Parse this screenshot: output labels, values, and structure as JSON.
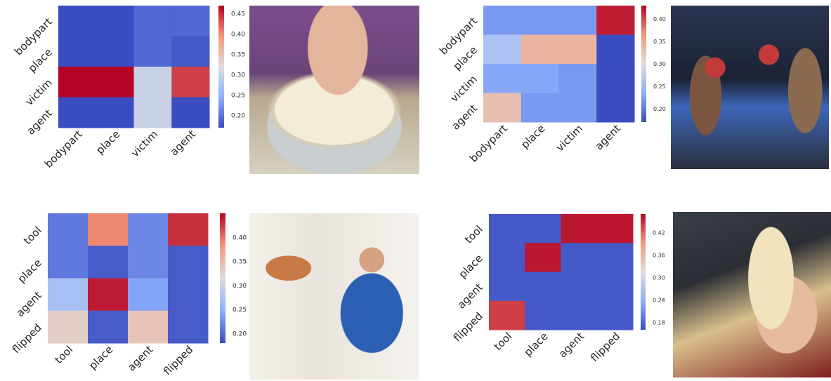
{
  "colormap": {
    "low": "#3b4cc0",
    "mid": "#dddddd",
    "high": "#b40426"
  },
  "chart_data": [
    {
      "type": "heatmap",
      "rows": [
        "bodypart",
        "place",
        "victim",
        "agent"
      ],
      "columns": [
        "bodypart",
        "place",
        "victim",
        "agent"
      ],
      "values": [
        [
          0.17,
          0.17,
          0.19,
          0.19
        ],
        [
          0.17,
          0.17,
          0.19,
          0.18
        ],
        [
          0.47,
          0.47,
          0.3,
          0.44
        ],
        [
          0.17,
          0.17,
          0.3,
          0.17
        ]
      ],
      "colorbar": {
        "ticks": [
          0.2,
          0.25,
          0.3,
          0.35,
          0.4,
          0.45
        ],
        "tick_labels": [
          "0.20",
          "0.25",
          "0.30",
          "0.35",
          "0.40",
          "0.45"
        ],
        "range": [
          0.17,
          0.47
        ]
      }
    },
    {
      "type": "heatmap",
      "rows": [
        "bodypart",
        "place",
        "victim",
        "agent"
      ],
      "columns": [
        "bodypart",
        "place",
        "victim",
        "agent"
      ],
      "values": [
        [
          0.22,
          0.22,
          0.22,
          0.42
        ],
        [
          0.26,
          0.34,
          0.34,
          0.17
        ],
        [
          0.23,
          0.23,
          0.22,
          0.17
        ],
        [
          0.33,
          0.22,
          0.22,
          0.17
        ]
      ],
      "colorbar": {
        "ticks": [
          0.2,
          0.25,
          0.3,
          0.35,
          0.4
        ],
        "tick_labels": [
          "0.20",
          "0.25",
          "0.30",
          "0.35",
          "0.40"
        ],
        "range": [
          0.17,
          0.43
        ]
      }
    },
    {
      "type": "heatmap",
      "rows": [
        "tool",
        "place",
        "agent",
        "flipped"
      ],
      "columns": [
        "tool",
        "place",
        "agent",
        "flipped"
      ],
      "values": [
        [
          0.21,
          0.39,
          0.22,
          0.43
        ],
        [
          0.21,
          0.19,
          0.22,
          0.19
        ],
        [
          0.27,
          0.44,
          0.24,
          0.19
        ],
        [
          0.33,
          0.19,
          0.34,
          0.19
        ]
      ],
      "colorbar": {
        "ticks": [
          0.2,
          0.25,
          0.3,
          0.35,
          0.4
        ],
        "tick_labels": [
          "0.20",
          "0.25",
          "0.30",
          "0.35",
          "0.40"
        ],
        "range": [
          0.18,
          0.45
        ]
      }
    },
    {
      "type": "heatmap",
      "rows": [
        "tool",
        "place",
        "agent",
        "flipped"
      ],
      "columns": [
        "tool",
        "place",
        "agent",
        "flipped"
      ],
      "values": [
        [
          0.17,
          0.17,
          0.46,
          0.46
        ],
        [
          0.17,
          0.46,
          0.17,
          0.17
        ],
        [
          0.17,
          0.17,
          0.17,
          0.17
        ],
        [
          0.44,
          0.17,
          0.17,
          0.17
        ]
      ],
      "colorbar": {
        "ticks": [
          0.18,
          0.24,
          0.3,
          0.36,
          0.42
        ],
        "tick_labels": [
          "0.18",
          "0.24",
          "0.30",
          "0.36",
          "0.42"
        ],
        "range": [
          0.16,
          0.47
        ]
      }
    }
  ],
  "photos": [
    {
      "name": "dough-bowl-photo",
      "colors": [
        "#7a4a8a",
        "#b9a47e",
        "#efe8d6",
        "#9aa6a4"
      ]
    },
    {
      "name": "boxing-match-photo",
      "colors": [
        "#1d2233",
        "#8c6a52",
        "#c23b3b",
        "#2a4c9a"
      ]
    },
    {
      "name": "kitchen-pancake-photo",
      "colors": [
        "#f2efe9",
        "#2b5fb4",
        "#c06a3a",
        "#1c1c1c"
      ]
    },
    {
      "name": "book-pages-photo",
      "colors": [
        "#2c2f36",
        "#efe0b8",
        "#e4b89a",
        "#8a1f1f"
      ]
    }
  ]
}
